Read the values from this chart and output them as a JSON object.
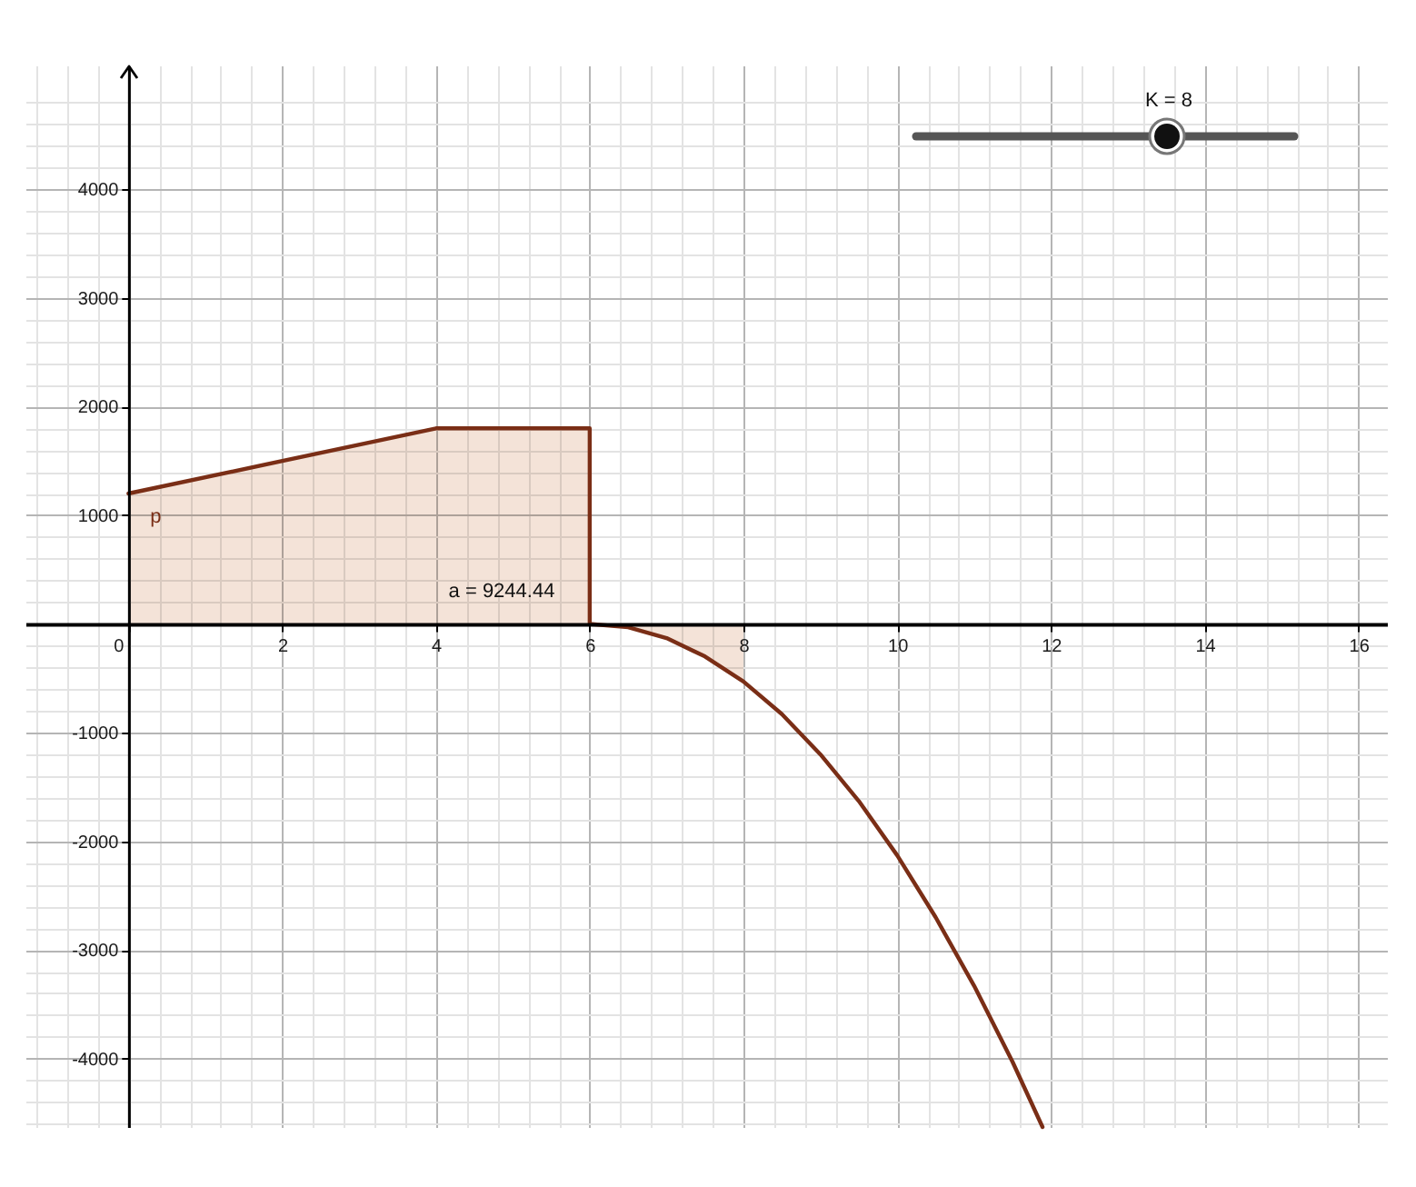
{
  "chart_data": {
    "type": "line",
    "xlim": [
      -1.34,
      16.37
    ],
    "ylim": [
      -4630,
      5140
    ],
    "xticks": [
      0,
      2,
      4,
      6,
      8,
      10,
      12,
      14,
      16
    ],
    "yticks": [
      -4000,
      -3000,
      -2000,
      -1000,
      1000,
      2000,
      3000,
      4000
    ],
    "grid": true,
    "series": [
      {
        "type": "area",
        "color": "#f4e3d8",
        "x": [
          0,
          4,
          6,
          6,
          6.5,
          7,
          7.5,
          8
        ],
        "values": [
          1200,
          1800,
          1800,
          0,
          -30,
          -130,
          -300,
          -530
        ]
      },
      {
        "name": "p",
        "color": "#7a2e16",
        "x": [
          0,
          4,
          6,
          6,
          6.5,
          7,
          7.5,
          8,
          8.5,
          9,
          9.5,
          10,
          10.5,
          11,
          11.5,
          11.89
        ],
        "values": [
          1200,
          1800,
          1800,
          0,
          -30,
          -130,
          -300,
          -530,
          -830,
          -1200,
          -1630,
          -2130,
          -2700,
          -3330,
          -4030,
          -4630
        ]
      }
    ],
    "annotations": [
      "a = 9244.44",
      "K = 8"
    ]
  }
}
